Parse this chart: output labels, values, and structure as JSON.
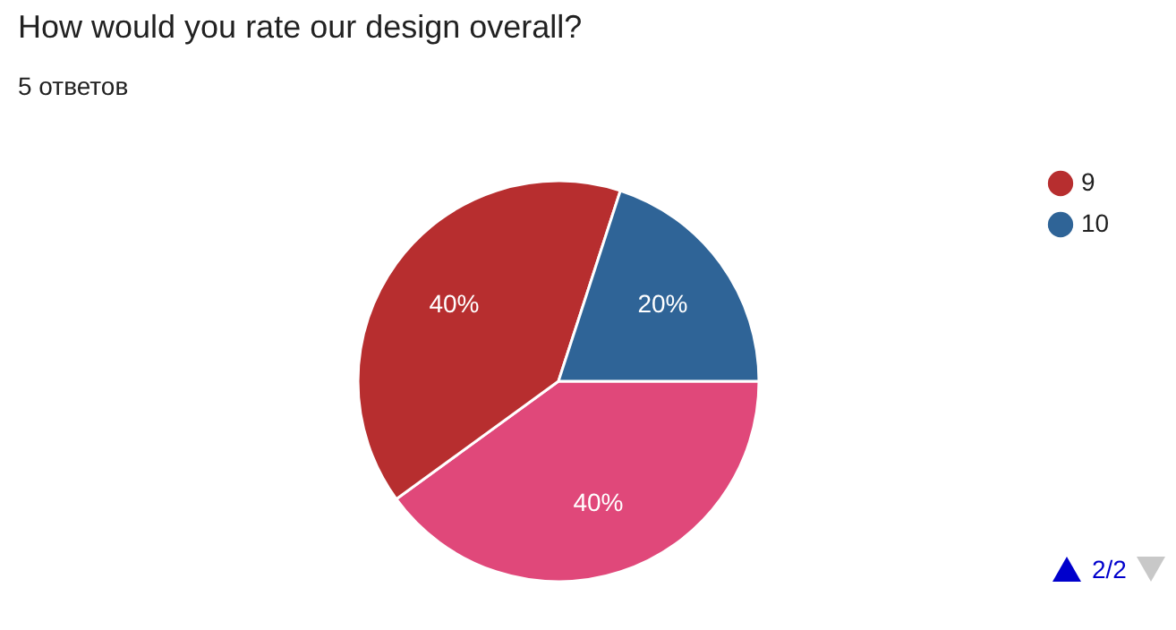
{
  "chart_data": {
    "type": "pie",
    "title": "How would you rate our design overall?",
    "subtitle": "5 ответов",
    "categories": [
      null,
      "9",
      "10"
    ],
    "values": [
      40,
      40,
      20
    ],
    "colors": [
      "#e0487a",
      "#b72e2f",
      "#2f6497"
    ],
    "value_labels": [
      "40%",
      "40%",
      "20%"
    ],
    "legend": "top right",
    "annotations": [
      "2/2"
    ]
  }
}
